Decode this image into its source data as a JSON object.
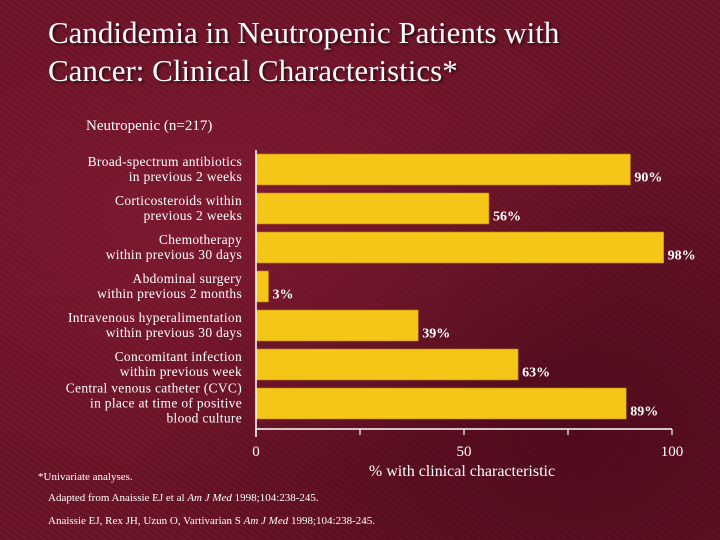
{
  "slide": {
    "title_line1": "Candidemia in Neutropenic Patients with",
    "title_line2": "Cancer: Clinical Characteristics*",
    "subtitle": "Neutropenic (n=217)",
    "footnote": "*Univariate analyses.",
    "references": [
      {
        "before": "Adapted from Anaissie EJ et al ",
        "journal": "Am J Med",
        "after": " 1998;104:238-245."
      },
      {
        "before": "Anaissie EJ, Rex JH, Uzun O, Vartivarian S ",
        "journal": "Am J Med",
        "after": " 1998;104:238-245."
      }
    ]
  },
  "colors": {
    "bar": "#f5c518",
    "bar_edge": "#b8860b",
    "text": "#ffffff",
    "axis": "#ffffff"
  },
  "chart_data": {
    "type": "bar",
    "orientation": "horizontal",
    "title": "Neutropenic (n=217)",
    "xlabel": "% with clinical characteristic",
    "ylabel": "",
    "xlim": [
      0,
      100
    ],
    "xticks": [
      0,
      50,
      100
    ],
    "categories": [
      [
        "Broad-spectrum antibiotics",
        "in previous 2 weeks"
      ],
      [
        "Corticosteroids within",
        "previous 2 weeks"
      ],
      [
        "Chemotherapy",
        "within previous 30 days"
      ],
      [
        "Abdominal surgery",
        "within previous 2 months"
      ],
      [
        "Intravenous hyperalimentation",
        "within previous 30 days"
      ],
      [
        "Concomitant infection",
        "within previous week"
      ],
      [
        "Central venous catheter (CVC)",
        "in place at time of positive",
        "blood culture"
      ]
    ],
    "values": [
      90,
      56,
      98,
      3,
      39,
      63,
      89
    ],
    "value_labels": [
      "90%",
      "56%",
      "98%",
      "3%",
      "39%",
      "63%",
      "89%"
    ]
  }
}
